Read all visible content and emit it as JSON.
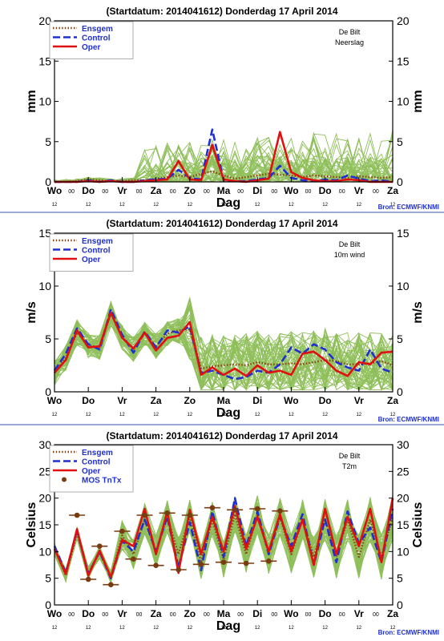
{
  "panels": [
    {
      "header": "(Startdatum: 2014041612)   Donderdag 17 April     2014",
      "station": "De Bilt",
      "variable": "Neerslag",
      "ylabel": "mm",
      "xlabel": "Dag",
      "source": "Bron: ECMWF/KNMI"
    },
    {
      "header": "(Startdatum: 2014041612)   Donderdag 17 April     2014",
      "station": "De Bilt",
      "variable": "10m wind",
      "ylabel": "m/s",
      "xlabel": "Dag",
      "source": "Bron: ECMWF/KNMI"
    },
    {
      "header": "(Startdatum: 2014041612)   Donderdag 17 April     2014",
      "station": "De Bilt",
      "variable": "T2m",
      "ylabel": "Celsius",
      "xlabel": "Dag",
      "source": "Bron: ECMWF/KNMI"
    }
  ],
  "colors": {
    "ensemble": "#8fbf5a",
    "ensgem": "#8b4513",
    "control": "#1f2fd0",
    "oper": "#e01010",
    "mos": "#7a3b10",
    "frame": "#000000",
    "separator": "#3355aa",
    "legend_text": "#1f2fd0",
    "source_text": "#1f2fd0"
  },
  "chart_data": [
    {
      "type": "line",
      "title": "(Startdatum: 2014041612)   Donderdag 17 April     2014",
      "xlabel": "Dag",
      "ylabel": "mm",
      "ylim": [
        0,
        20
      ],
      "yticks": [
        0,
        5,
        10,
        15,
        20
      ],
      "x_hours": [
        0,
        12,
        24,
        36,
        48,
        60,
        72,
        84,
        96,
        108,
        120,
        132,
        144,
        156,
        168,
        180,
        192,
        204,
        216,
        228,
        240,
        252,
        264,
        276,
        288,
        300,
        312,
        324,
        336,
        348,
        360
      ],
      "day_labels": [
        "Wo",
        "Do",
        "Vr",
        "Za",
        "Zo",
        "Ma",
        "Di",
        "Wo",
        "Do",
        "Vr",
        "Za"
      ],
      "sub_labels": [
        "12",
        "00",
        "12",
        "00",
        "12",
        "00",
        "12",
        "00",
        "12",
        "00",
        "12",
        "00",
        "12",
        "00",
        "12",
        "00",
        "12",
        "00",
        "12",
        "00",
        "12"
      ],
      "legend": [
        "Ensgem",
        "Control",
        "Oper"
      ],
      "legend_position": "top-left",
      "grid": false,
      "ensemble_members": 50,
      "series": [
        {
          "name": "Ensgem",
          "style": "dotted",
          "values": [
            0,
            0,
            0.1,
            0.3,
            0.2,
            0.1,
            0.1,
            0.2,
            0.2,
            0.4,
            0.6,
            0.8,
            0.6,
            1.0,
            1.3,
            0.8,
            0.4,
            0.6,
            0.8,
            1.0,
            0.9,
            0.8,
            0.6,
            0.8,
            0.7,
            0.6,
            0.5,
            0.7,
            0.6,
            0.5,
            0.6
          ]
        },
        {
          "name": "Control",
          "style": "dashed",
          "values": [
            0,
            0,
            0,
            0.2,
            0,
            0.2,
            0,
            0,
            0.2,
            0.3,
            0.4,
            1.5,
            0.5,
            0.3,
            6.5,
            0.2,
            0.1,
            0.1,
            0.3,
            0.5,
            2.0,
            0.5,
            0.2,
            0.1,
            0.3,
            0.2,
            0.8,
            0.4,
            0.1,
            0.2,
            0
          ]
        },
        {
          "name": "Oper",
          "style": "solid",
          "values": [
            0,
            0,
            0,
            0.1,
            0,
            0.1,
            0,
            0,
            0.1,
            0.2,
            0.3,
            2.6,
            0.3,
            0.2,
            4.6,
            0.3,
            0.1,
            0,
            0.2,
            0.4,
            6.2,
            1.2,
            0.5,
            0.2,
            0.1,
            0.1,
            0.3,
            0.2,
            0,
            0,
            0
          ]
        }
      ]
    },
    {
      "type": "line",
      "title": "(Startdatum: 2014041612)   Donderdag 17 April     2014",
      "xlabel": "Dag",
      "ylabel": "m/s",
      "ylim": [
        0,
        15
      ],
      "yticks": [
        0,
        5,
        10,
        15
      ],
      "x_hours": [
        0,
        12,
        24,
        36,
        48,
        60,
        72,
        84,
        96,
        108,
        120,
        132,
        144,
        156,
        168,
        180,
        192,
        204,
        216,
        228,
        240,
        252,
        264,
        276,
        288,
        300,
        312,
        324,
        336,
        348,
        360
      ],
      "day_labels": [
        "Wo",
        "Do",
        "Vr",
        "Za",
        "Zo",
        "Ma",
        "Di",
        "Wo",
        "Do",
        "Vr",
        "Za"
      ],
      "sub_labels": [
        "12",
        "12",
        "12",
        "12",
        "12",
        "12",
        "12",
        "12",
        "12",
        "12",
        "12"
      ],
      "legend": [
        "Ensgem",
        "Control",
        "Oper"
      ],
      "legend_position": "top-left",
      "grid": false,
      "ensemble_members": 50,
      "series": [
        {
          "name": "Ensgem",
          "style": "dotted",
          "values": [
            1.8,
            3.2,
            5.6,
            4.4,
            4.2,
            7.4,
            5.2,
            4.0,
            5.5,
            4.3,
            5.5,
            5.8,
            5.9,
            2.2,
            2.4,
            2.5,
            2.6,
            2.5,
            2.8,
            2.6,
            2.6,
            2.7,
            2.6,
            2.8,
            3.0,
            2.9,
            2.6,
            2.6,
            2.7,
            2.9,
            2.5
          ]
        },
        {
          "name": "Control",
          "style": "dashed",
          "values": [
            2.0,
            3.6,
            6.0,
            4.5,
            4.0,
            7.8,
            5.4,
            3.7,
            5.7,
            4.2,
            5.8,
            5.6,
            6.2,
            1.8,
            2.0,
            1.6,
            1.2,
            1.4,
            2.0,
            1.8,
            2.6,
            4.2,
            3.6,
            4.5,
            4.0,
            2.8,
            2.3,
            2.0,
            4.0,
            2.2,
            1.8
          ]
        },
        {
          "name": "Oper",
          "style": "solid",
          "values": [
            1.8,
            3.0,
            5.8,
            4.2,
            4.3,
            7.5,
            5.1,
            4.1,
            5.6,
            3.9,
            5.1,
            5.3,
            6.6,
            1.6,
            2.3,
            1.6,
            2.2,
            1.5,
            2.5,
            1.8,
            2.0,
            1.6,
            3.6,
            3.8,
            3.0,
            2.0,
            1.5,
            2.8,
            2.6,
            3.7,
            3.8
          ]
        }
      ]
    },
    {
      "type": "line",
      "title": "(Startdatum: 2014041612)   Donderdag 17 April     2014",
      "xlabel": "Dag",
      "ylabel": "Celsius",
      "ylim": [
        0,
        30
      ],
      "yticks": [
        0,
        5,
        10,
        15,
        20,
        25,
        30
      ],
      "x_hours": [
        0,
        12,
        24,
        36,
        48,
        60,
        72,
        84,
        96,
        108,
        120,
        132,
        144,
        156,
        168,
        180,
        192,
        204,
        216,
        228,
        240,
        252,
        264,
        276,
        288,
        300,
        312,
        324,
        336,
        348,
        360
      ],
      "day_labels": [
        "Wo",
        "Do",
        "Vr",
        "Za",
        "Zo",
        "Ma",
        "Di",
        "Wo",
        "Do",
        "Vr",
        "Za"
      ],
      "sub_labels": [
        "12",
        "00",
        "12",
        "00",
        "12",
        "00",
        "12",
        "00",
        "12",
        "00",
        "12",
        "00",
        "12",
        "00",
        "12",
        "00",
        "12",
        "00",
        "12",
        "00",
        "12"
      ],
      "legend": [
        "Ensgem",
        "Control",
        "Oper",
        "MOS TnTx"
      ],
      "legend_position": "top-left",
      "grid": false,
      "ensemble_members": 50,
      "series": [
        {
          "name": "Ensgem",
          "style": "dotted",
          "values": [
            10.5,
            5.5,
            13.5,
            6.0,
            9.8,
            5.2,
            13.0,
            9.5,
            16.0,
            10.0,
            16.5,
            9.5,
            16.5,
            8.0,
            16.0,
            8.5,
            17.0,
            9.5,
            17.0,
            9.5,
            16.5,
            9.5,
            16.0,
            9.0,
            16.0,
            9.0,
            16.0,
            9.0,
            16.0,
            9.0,
            16.5
          ]
        },
        {
          "name": "Control",
          "style": "dashed",
          "values": [
            11.0,
            6.0,
            14.0,
            5.8,
            10.0,
            5.0,
            12.0,
            10.0,
            16.0,
            10.0,
            16.5,
            7.0,
            15.5,
            6.5,
            17.5,
            9.0,
            20.0,
            11.0,
            17.5,
            9.5,
            16.5,
            11.0,
            17.0,
            7.5,
            16.0,
            8.0,
            17.5,
            11.5,
            14.5,
            8.0,
            18.0
          ]
        },
        {
          "name": "Oper",
          "style": "solid",
          "values": [
            10.5,
            5.8,
            14.2,
            5.5,
            10.2,
            5.2,
            12.2,
            11.0,
            18.0,
            9.5,
            17.5,
            6.0,
            17.8,
            9.5,
            16.5,
            10.0,
            18.5,
            10.5,
            16.5,
            10.0,
            17.0,
            10.0,
            16.0,
            7.5,
            18.0,
            9.5,
            16.5,
            11.0,
            18.0,
            8.0,
            20.0
          ]
        },
        {
          "name": "MOS TnTx",
          "style": "markers",
          "points": [
            {
              "x": 24,
              "y": 16.8
            },
            {
              "x": 36,
              "y": 4.8
            },
            {
              "x": 48,
              "y": 11.0
            },
            {
              "x": 60,
              "y": 3.8
            },
            {
              "x": 72,
              "y": 13.8
            },
            {
              "x": 84,
              "y": 8.6
            },
            {
              "x": 96,
              "y": 16.8
            },
            {
              "x": 108,
              "y": 7.4
            },
            {
              "x": 120,
              "y": 17.2
            },
            {
              "x": 132,
              "y": 6.6
            },
            {
              "x": 144,
              "y": 16.8
            },
            {
              "x": 156,
              "y": 7.6
            },
            {
              "x": 168,
              "y": 18.2
            },
            {
              "x": 180,
              "y": 8.0
            },
            {
              "x": 192,
              "y": 17.8
            },
            {
              "x": 204,
              "y": 7.8
            },
            {
              "x": 216,
              "y": 18.0
            },
            {
              "x": 228,
              "y": 8.2
            },
            {
              "x": 240,
              "y": 17.6
            }
          ]
        }
      ]
    }
  ]
}
